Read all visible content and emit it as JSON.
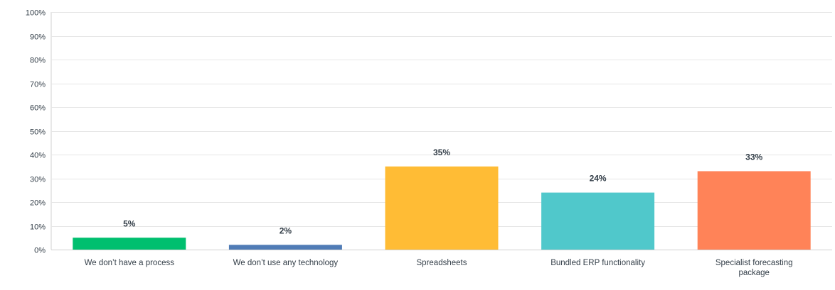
{
  "chart_data": {
    "type": "bar",
    "categories": [
      "We don't have a process",
      "We don't use any technology",
      "Spreadsheets",
      "Bundled ERP functionality",
      "Specialist forecasting package"
    ],
    "category_lines": [
      [
        "We don’t have a process"
      ],
      [
        "We don’t use any technology"
      ],
      [
        "Spreadsheets"
      ],
      [
        "Bundled ERP functionality"
      ],
      [
        "Specialist forecasting",
        "package"
      ]
    ],
    "values": [
      5,
      2,
      35,
      24,
      33
    ],
    "data_labels": [
      "5%",
      "2%",
      "35%",
      "24%",
      "33%"
    ],
    "colors": [
      "#00bf6f",
      "#507cb6",
      "#ffbc35",
      "#50c8cb",
      "#ff8358"
    ],
    "yticks": [
      "0%",
      "10%",
      "20%",
      "30%",
      "40%",
      "50%",
      "60%",
      "70%",
      "80%",
      "90%",
      "100%"
    ],
    "ylim": [
      0,
      100
    ],
    "grid": true,
    "legend": "none",
    "title": "",
    "xlabel": "",
    "ylabel": ""
  }
}
